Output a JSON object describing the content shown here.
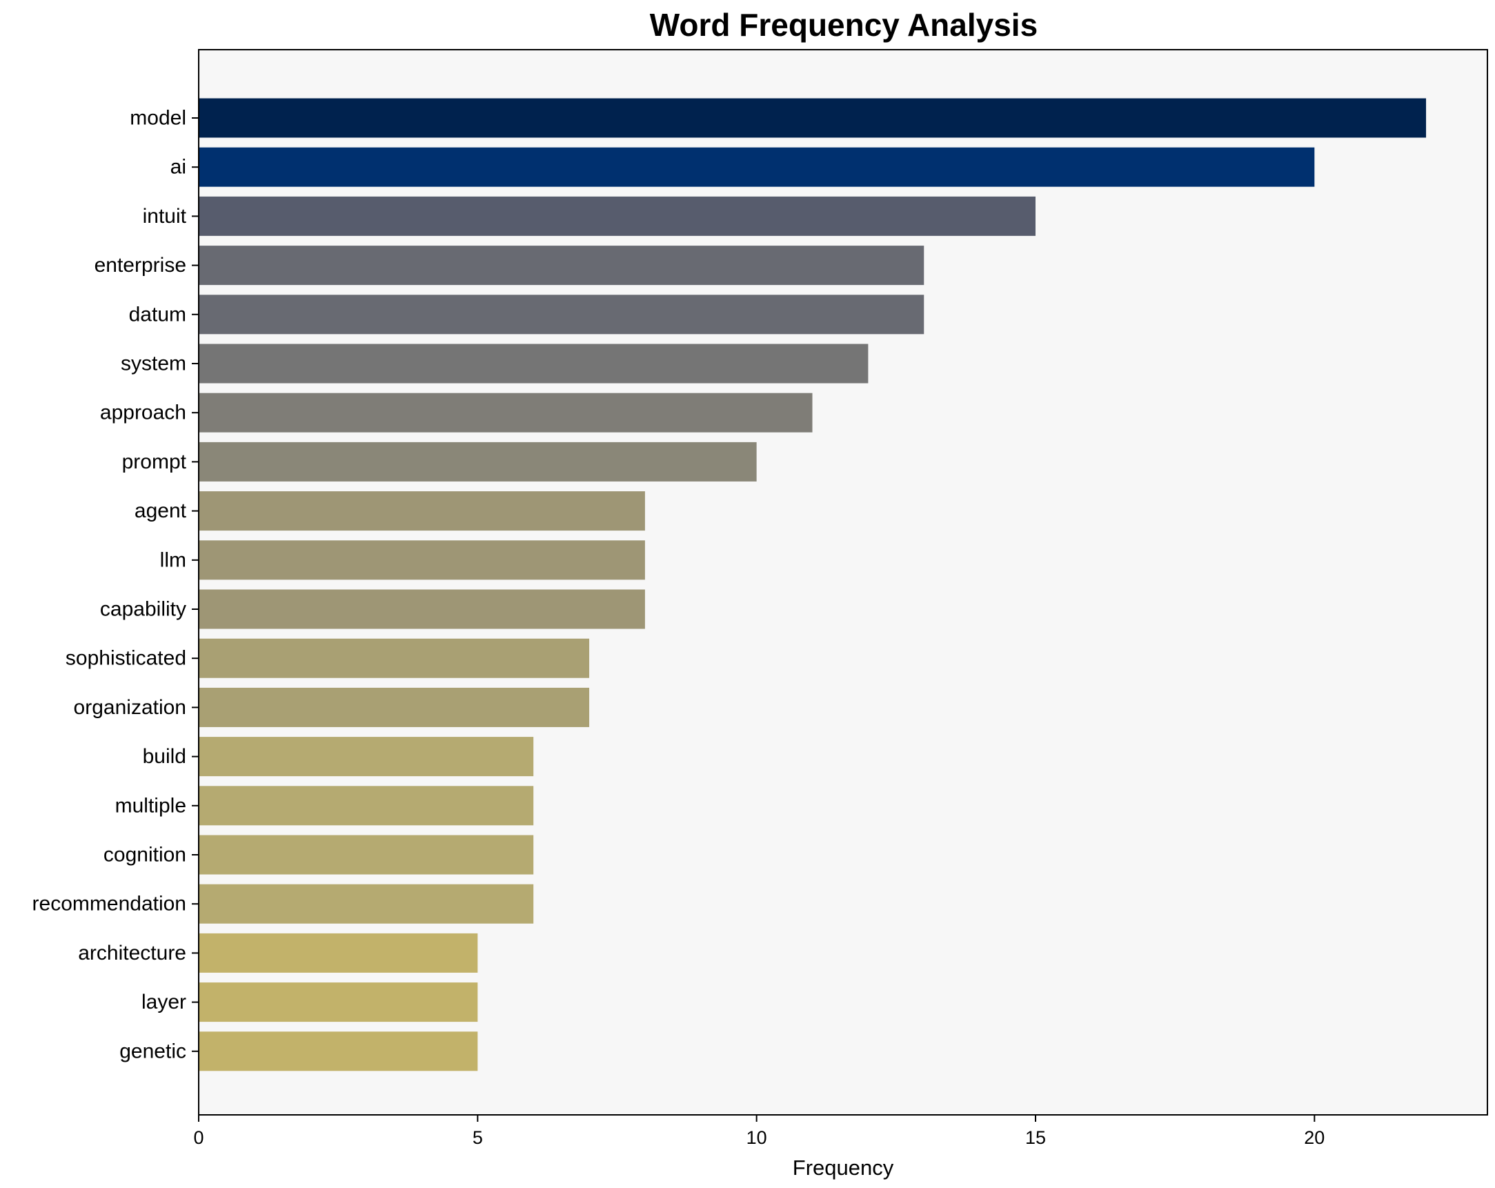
{
  "chart_data": {
    "type": "bar",
    "orientation": "horizontal",
    "title": "Word Frequency Analysis",
    "xlabel": "Frequency",
    "ylabel": "",
    "xlim": [
      0,
      23.1
    ],
    "xticks": [
      0,
      5,
      10,
      15,
      20
    ],
    "grid": false,
    "legend": "none",
    "plot_background": "#f7f7f7",
    "categories": [
      "model",
      "ai",
      "intuit",
      "enterprise",
      "datum",
      "system",
      "approach",
      "prompt",
      "agent",
      "llm",
      "capability",
      "sophisticated",
      "organization",
      "build",
      "multiple",
      "cognition",
      "recommendation",
      "architecture",
      "layer",
      "genetic"
    ],
    "values": [
      22,
      20,
      15,
      13,
      13,
      12,
      11,
      10,
      8,
      8,
      8,
      7,
      7,
      6,
      6,
      6,
      6,
      5,
      5,
      5
    ],
    "colors": [
      "#00224e",
      "#00306f",
      "#575c6d",
      "#686a72",
      "#686a72",
      "#757575",
      "#7f7d77",
      "#8a8778",
      "#9e9675",
      "#9e9675",
      "#9e9675",
      "#a9a073",
      "#a9a073",
      "#b5aa71",
      "#b5aa71",
      "#b5aa71",
      "#b5aa71",
      "#c2b26a",
      "#c2b26a",
      "#c2b26a"
    ]
  }
}
